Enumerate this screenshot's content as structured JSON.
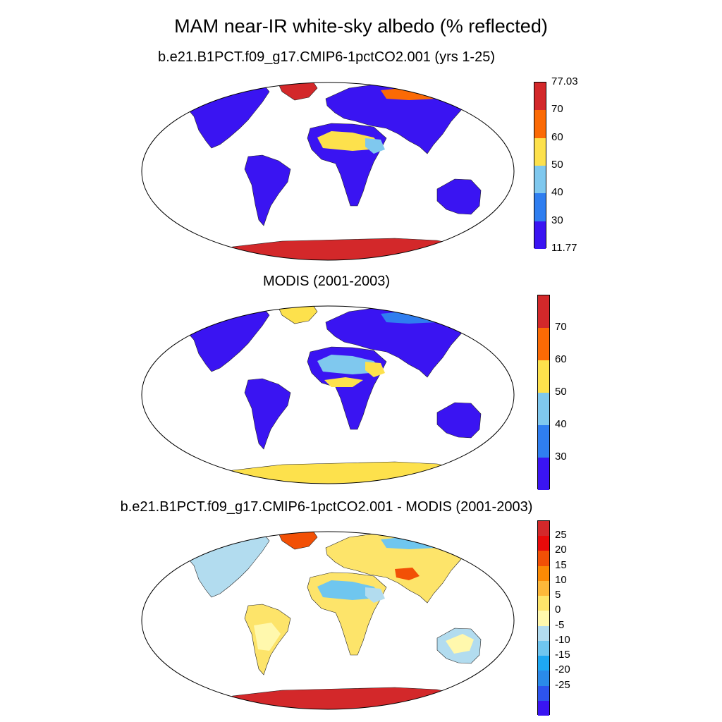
{
  "title": "MAM near-IR white-sky albedo (% reflected)",
  "panels": [
    {
      "id": "model",
      "title": "b.e21.B1PCT.f09_g17.CMIP6-1pctCO2.001 (yrs 1-25)",
      "colorbar": {
        "colors": [
          "#3a14f2",
          "#2f7ef0",
          "#7fc8ee",
          "#fde14c",
          "#fb6a05",
          "#d3282a"
        ],
        "labels": [
          "77.03",
          "70",
          "60",
          "50",
          "40",
          "30",
          "11.77"
        ]
      }
    },
    {
      "id": "modis",
      "title": "MODIS (2001-2003)",
      "colorbar": {
        "colors": [
          "#3a14f2",
          "#2f7ef0",
          "#7fc8ee",
          "#fde14c",
          "#fb6a05",
          "#d3282a"
        ],
        "labels": [
          "70",
          "60",
          "50",
          "40",
          "30"
        ]
      }
    },
    {
      "id": "diff",
      "title": "b.e21.B1PCT.f09_g17.CMIP6-1pctCO2.001 - MODIS (2001-2003)",
      "colorbar": {
        "colors": [
          "#3a14f2",
          "#2d54ee",
          "#2a8ae9",
          "#1ea8f2",
          "#6fc6ef",
          "#b2dcef",
          "#fff8ad",
          "#fde46a",
          "#fdb83a",
          "#fb8a05",
          "#f25006",
          "#e80a0a",
          "#d3282a"
        ],
        "labels": [
          "25",
          "20",
          "15",
          "10",
          "5",
          "0",
          "-5",
          "-10",
          "-15",
          "-20",
          "-25"
        ]
      }
    }
  ]
}
